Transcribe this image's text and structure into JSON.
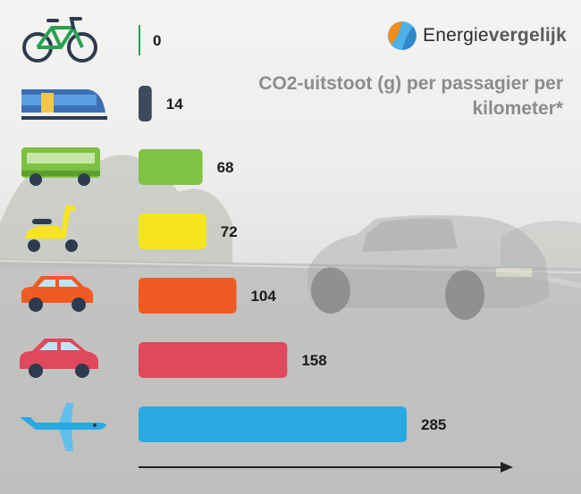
{
  "brand": {
    "name_part1": "Energie",
    "name_part2": "vergelijk",
    "logo_colors": [
      "#f28c1a",
      "#2f86c9",
      "#4db0e6"
    ]
  },
  "chart_data": {
    "type": "bar",
    "orientation": "horizontal",
    "title": "CO2-uitstoot (g) per passagier per kilometer*",
    "categories": [
      "fiets",
      "trein",
      "bus",
      "scooter",
      "kleine auto",
      "middelgrote auto",
      "vliegtuig"
    ],
    "icons": [
      "bicycle-icon",
      "train-icon",
      "bus-icon",
      "scooter-icon",
      "small-car-icon",
      "medium-car-icon",
      "airplane-icon"
    ],
    "values": [
      0,
      14,
      68,
      72,
      104,
      158,
      285
    ],
    "colors": [
      "#2aa152",
      "#3c4a5c",
      "#80c342",
      "#f6e51c",
      "#f15a22",
      "#e0485c",
      "#29a9e1"
    ],
    "xlim": [
      0,
      285
    ],
    "value_labels": [
      "0",
      "14",
      "68",
      "72",
      "104",
      "158",
      "285"
    ],
    "axis": "arrow"
  }
}
